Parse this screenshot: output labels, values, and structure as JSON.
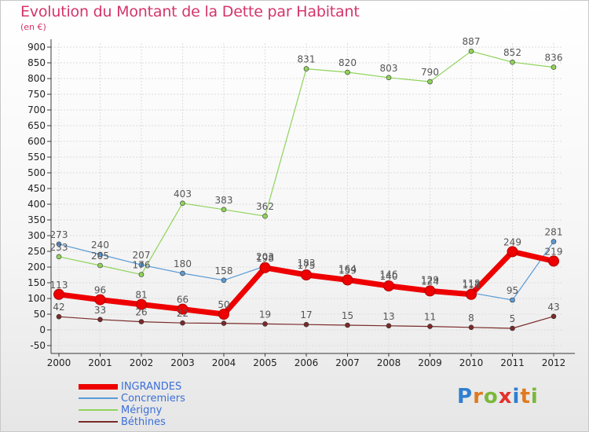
{
  "header": {
    "title": "Evolution du Montant de la Dette par Habitant",
    "subtitle": "(en €)"
  },
  "colors": {
    "title": "#d4346a",
    "grid": "#dcdcdc",
    "axis": "#3a3a3a",
    "tick_text": "#222222",
    "value_text": "#555555",
    "legend_text": "#3b6fd8"
  },
  "logo": {
    "letters": [
      {
        "char": "P",
        "color": "#2f7fd0"
      },
      {
        "char": "r",
        "color": "#e07a1f"
      },
      {
        "char": "o",
        "color": "#7ab83a"
      },
      {
        "char": "x",
        "color": "#e4312c"
      },
      {
        "char": "i",
        "color": "#2f7fd0"
      },
      {
        "char": "t",
        "color": "#e07a1f"
      },
      {
        "char": "i",
        "color": "#7ab83a"
      }
    ]
  },
  "chart_data": {
    "type": "line",
    "title": "Evolution du Montant de la Dette par Habitant",
    "subtitle": "(en €)",
    "x": [
      "2000",
      "2001",
      "2002",
      "2003",
      "2004",
      "2005",
      "2006",
      "2007",
      "2008",
      "2009",
      "2010",
      "2011",
      "2012"
    ],
    "y_ticks": [
      "900",
      "850",
      "800",
      "750",
      "700",
      "650",
      "600",
      "550",
      "500",
      "450",
      "400",
      "350",
      "300",
      "250",
      "200",
      "150",
      "100",
      "50",
      "0",
      "-50"
    ],
    "ylim": [
      -50,
      900
    ],
    "grid": true,
    "legend_position": "bottom-left",
    "series": [
      {
        "name": "INGRANDES",
        "color": "#ee0000",
        "stroke": 7,
        "marker_r": 6.5,
        "values": [
          113,
          96,
          81,
          66,
          50,
          198,
          175,
          159,
          140,
          124,
          113,
          249,
          219
        ],
        "labels": [
          "113",
          "96",
          "81",
          "66",
          "50",
          "198",
          "175",
          "159",
          "140",
          "124",
          "113",
          "249",
          "219"
        ]
      },
      {
        "name": "Concremiers",
        "color": "#5a9bd5",
        "stroke": 1.2,
        "marker_r": 3,
        "values": [
          273,
          240,
          207,
          180,
          158,
          203,
          183,
          164,
          146,
          129,
          118,
          95,
          281
        ],
        "labels": [
          "273",
          "240",
          "207",
          "180",
          "158",
          "203",
          "183",
          "164",
          "146",
          "129",
          "118",
          "95",
          "281"
        ]
      },
      {
        "name": "Mérigny",
        "color": "#8fd45a",
        "stroke": 1.2,
        "marker_r": 3,
        "values": [
          233,
          205,
          176,
          403,
          383,
          362,
          831,
          820,
          803,
          790,
          887,
          852,
          836
        ],
        "labels": [
          "233",
          "205",
          "176",
          "403",
          "383",
          "362",
          "831",
          "820",
          "803",
          "790",
          "887",
          "852",
          "836"
        ]
      },
      {
        "name": "Béthines",
        "color": "#7a2a2a",
        "stroke": 1.2,
        "marker_r": 3,
        "values": [
          42,
          33,
          26,
          22,
          21,
          19,
          17,
          15,
          13,
          11,
          8,
          5,
          43
        ],
        "labels": [
          "42",
          "33",
          "26",
          "22",
          "",
          "19",
          "17",
          "15",
          "13",
          "11",
          "8",
          "5",
          "43"
        ]
      }
    ]
  }
}
